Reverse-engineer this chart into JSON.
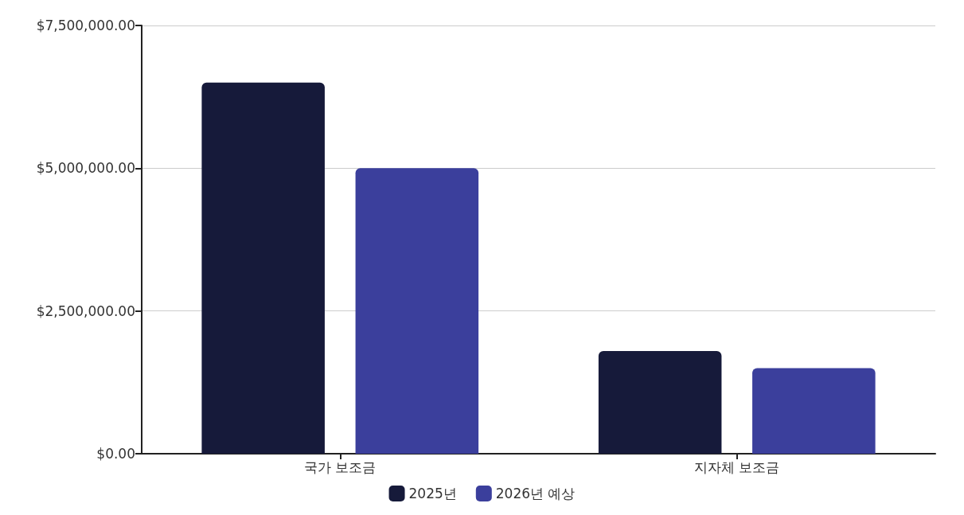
{
  "chart_data": {
    "type": "bar",
    "categories": [
      "국가 보조금",
      "지자체 보조금"
    ],
    "series": [
      {
        "name": "2025년",
        "color": "#161a3a",
        "values": [
          6500000,
          1800000
        ]
      },
      {
        "name": "2026년 예상",
        "color": "#3b3f9c",
        "values": [
          5000000,
          1500000
        ]
      }
    ],
    "ylim": [
      0,
      7500000
    ],
    "yticks": [
      {
        "value": 0,
        "label": "$0.00"
      },
      {
        "value": 2500000,
        "label": "$2,500,000.00"
      },
      {
        "value": 5000000,
        "label": "$5,000,000.00"
      },
      {
        "value": 7500000,
        "label": "$7,500,000.00"
      }
    ],
    "grid": "y",
    "legend": "bottom"
  }
}
